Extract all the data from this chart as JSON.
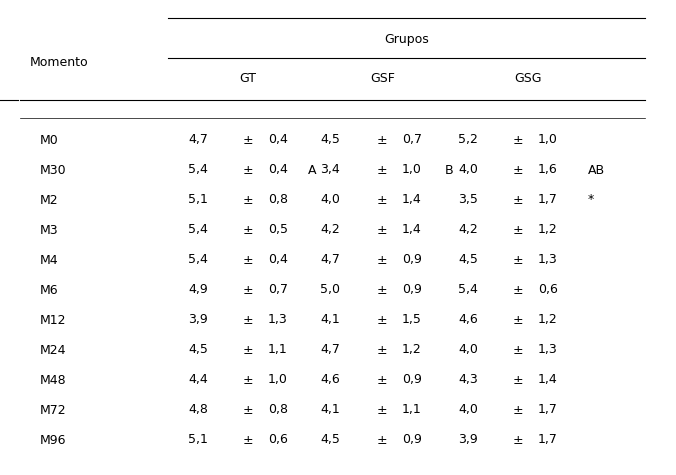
{
  "moments": [
    "M0",
    "M30",
    "M2",
    "M3",
    "M4",
    "M6",
    "M12",
    "M24",
    "M48",
    "M72",
    "M96"
  ],
  "gt_mean": [
    "4,7",
    "5,4",
    "5,1",
    "5,4",
    "5,4",
    "4,9",
    "3,9",
    "4,5",
    "4,4",
    "4,8",
    "5,1"
  ],
  "gt_sd": [
    "0,4",
    "0,4",
    "0,8",
    "0,5",
    "0,4",
    "0,7",
    "1,3",
    "1,1",
    "1,0",
    "0,8",
    "0,6"
  ],
  "gsf_mean": [
    "4,5",
    "3,4",
    "4,0",
    "4,2",
    "4,7",
    "5,0",
    "4,1",
    "4,7",
    "4,6",
    "4,1",
    "4,5"
  ],
  "gsf_sd": [
    "0,7",
    "1,0",
    "1,4",
    "1,4",
    "0,9",
    "0,9",
    "1,5",
    "1,2",
    "0,9",
    "1,1",
    "0,9"
  ],
  "gsg_mean": [
    "5,2",
    "4,0",
    "3,5",
    "4,2",
    "4,5",
    "5,4",
    "4,6",
    "4,0",
    "4,3",
    "4,0",
    "3,9"
  ],
  "gsg_sd": [
    "1,0",
    "1,6",
    "1,7",
    "1,2",
    "1,3",
    "0,6",
    "1,2",
    "1,3",
    "1,4",
    "1,7",
    "1,7"
  ],
  "gt_annot": [
    "",
    "A",
    "",
    "",
    "",
    "",
    "",
    "",
    "",
    "",
    ""
  ],
  "gsf_annot": [
    "",
    "B",
    "",
    "",
    "",
    "",
    "",
    "",
    "",
    "",
    ""
  ],
  "gsg_annot": [
    "",
    "AB",
    "*",
    "",
    "",
    "",
    "",
    "",
    "",
    "",
    ""
  ],
  "header_grupos": "Grupos",
  "header_gt": "GT",
  "header_gsf": "GSF",
  "header_gsg": "GSG",
  "col_momento": "Momento",
  "pm_sign": "±",
  "background_color": "#ffffff",
  "text_color": "#000000",
  "font_size": 9.0,
  "header_font_size": 9.0
}
